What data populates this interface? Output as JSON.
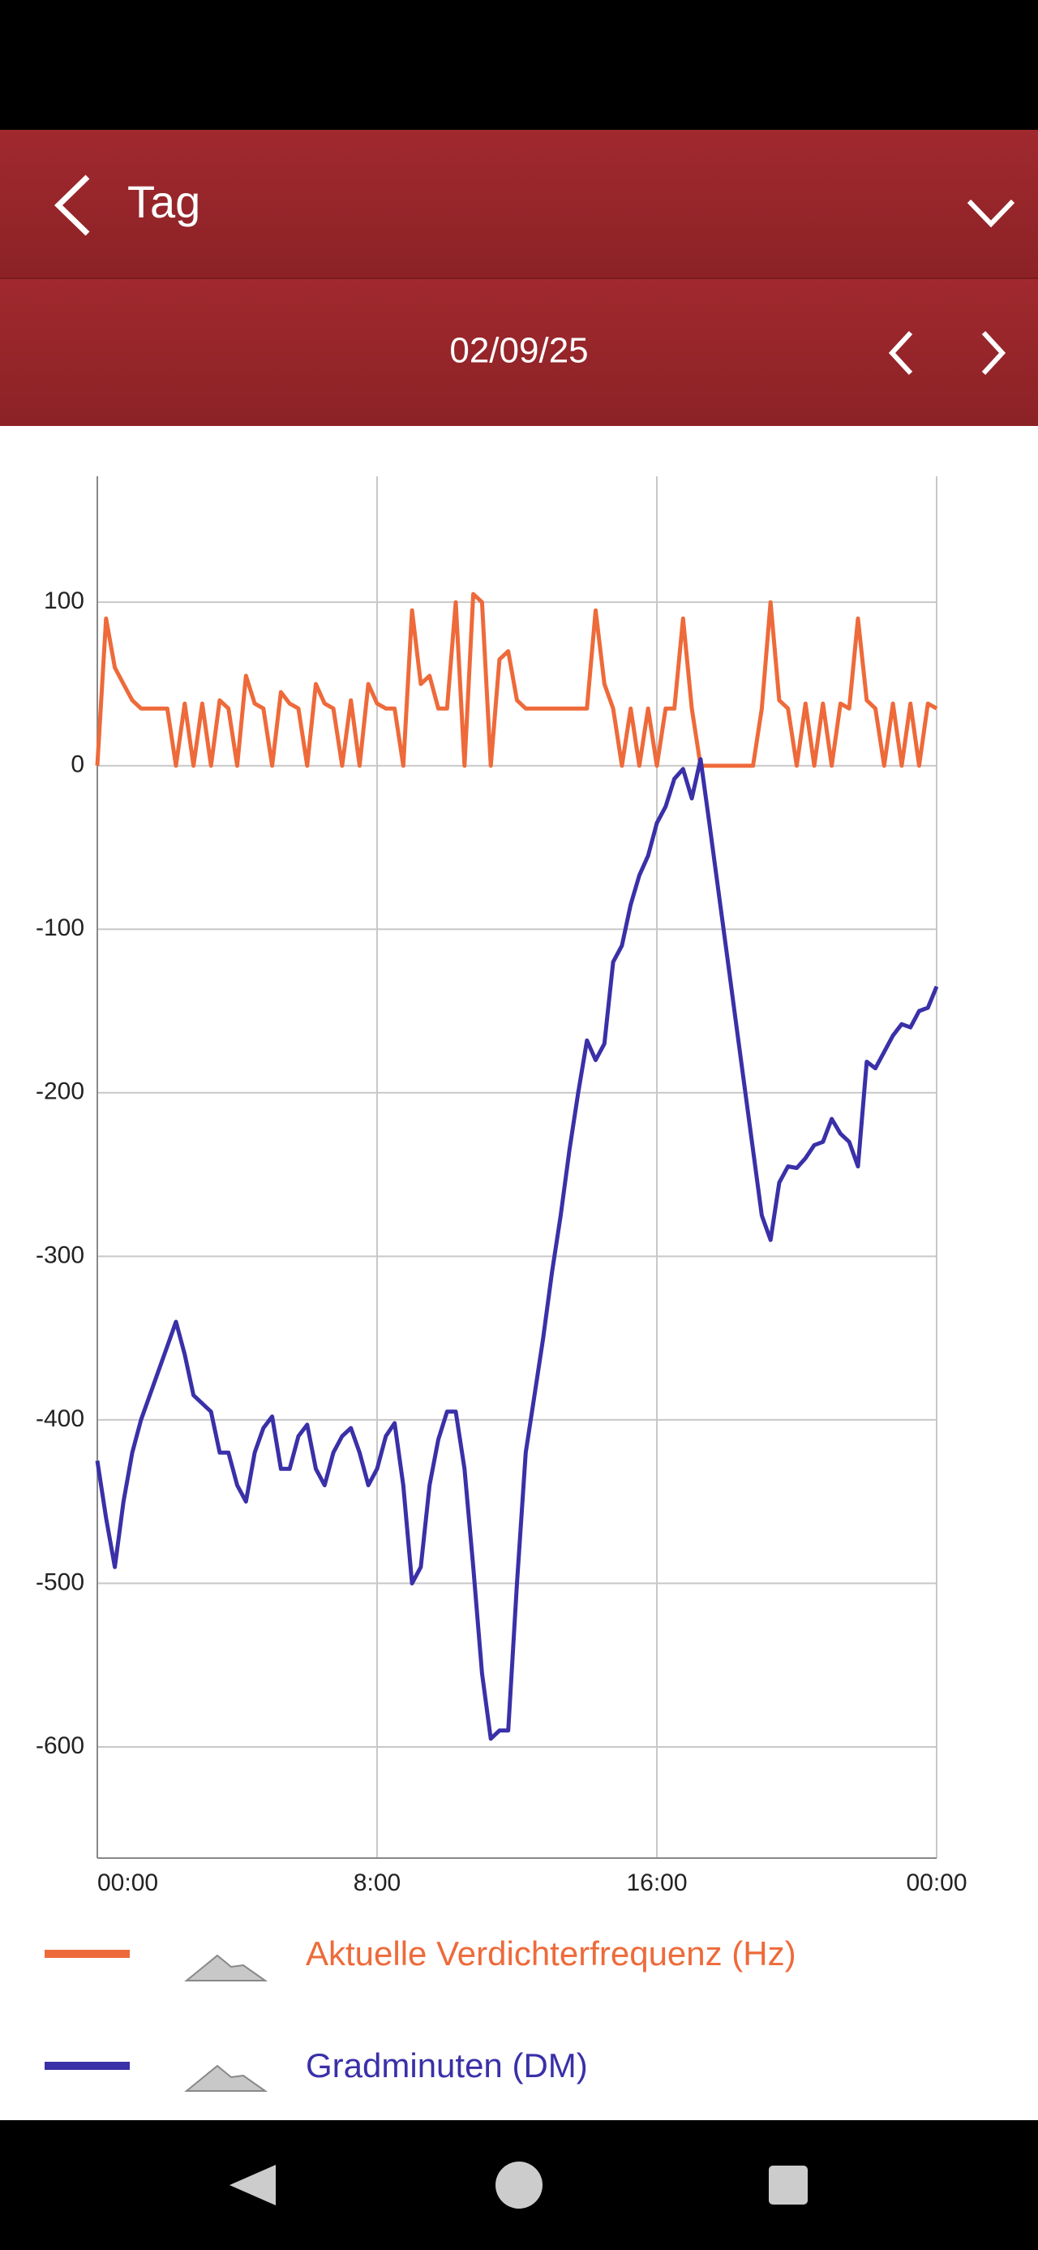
{
  "header": {
    "title": "Tag",
    "date": "02/09/25"
  },
  "chart_data": {
    "type": "line",
    "x": [
      0,
      0.25,
      0.5,
      0.75,
      1,
      1.25,
      1.5,
      1.75,
      2,
      2.25,
      2.5,
      2.75,
      3,
      3.25,
      3.5,
      3.75,
      4,
      4.25,
      4.5,
      4.75,
      5,
      5.25,
      5.5,
      5.75,
      6,
      6.25,
      6.5,
      6.75,
      7,
      7.25,
      7.5,
      7.75,
      8,
      8.25,
      8.5,
      8.75,
      9,
      9.25,
      9.5,
      9.75,
      10,
      10.25,
      10.5,
      10.75,
      11,
      11.25,
      11.5,
      11.75,
      12,
      12.25,
      12.5,
      12.75,
      13,
      13.25,
      13.5,
      13.75,
      14,
      14.25,
      14.5,
      14.75,
      15,
      15.25,
      15.5,
      15.75,
      16,
      16.25,
      16.5,
      16.75,
      17,
      17.25,
      17.5,
      17.75,
      18,
      18.25,
      18.5,
      18.75,
      19,
      19.25,
      19.5,
      19.75,
      20,
      20.25,
      20.5,
      20.75,
      21,
      21.25,
      21.5,
      21.75,
      22,
      22.25,
      22.5,
      22.75,
      23,
      23.25,
      23.5,
      23.75,
      24
    ],
    "xlim": [
      0,
      24
    ],
    "xticks": [
      {
        "value": 0,
        "label": "00:00"
      },
      {
        "value": 8,
        "label": "8:00"
      },
      {
        "value": 16,
        "label": "16:00"
      },
      {
        "value": 24,
        "label": "00:00"
      }
    ],
    "ylim": [
      -668,
      177
    ],
    "yticks": [
      -600,
      -500,
      -400,
      -300,
      -200,
      -100,
      0,
      100
    ],
    "grid": true,
    "series": [
      {
        "name": "Aktuelle Verdichterfrequenz (Hz)",
        "color": "#ee6a3a",
        "values": [
          0,
          90,
          60,
          50,
          40,
          35,
          35,
          35,
          35,
          0,
          38,
          0,
          38,
          0,
          40,
          35,
          0,
          55,
          38,
          35,
          0,
          45,
          38,
          35,
          0,
          50,
          38,
          35,
          0,
          40,
          0,
          50,
          38,
          35,
          35,
          0,
          95,
          50,
          55,
          35,
          35,
          100,
          0,
          105,
          100,
          0,
          65,
          70,
          40,
          35,
          35,
          35,
          35,
          35,
          35,
          35,
          35,
          95,
          50,
          35,
          0,
          35,
          0,
          35,
          0,
          35,
          35,
          90,
          35,
          0,
          0,
          0,
          0,
          0,
          0,
          0,
          35,
          100,
          40,
          35,
          0,
          38,
          0,
          38,
          0,
          38,
          35,
          90,
          40,
          35,
          0,
          38,
          0,
          38,
          0,
          38,
          35
        ]
      },
      {
        "name": "Gradminuten (DM)",
        "color": "#3a30a8",
        "values": [
          -425,
          -460,
          -490,
          -450,
          -420,
          -400,
          -385,
          -370,
          -355,
          -340,
          -360,
          -385,
          -390,
          -395,
          -420,
          -420,
          -440,
          -450,
          -420,
          -405,
          -398,
          -430,
          -430,
          -410,
          -403,
          -430,
          -440,
          -420,
          -410,
          -405,
          -420,
          -440,
          -430,
          -410,
          -402,
          -440,
          -500,
          -490,
          -440,
          -412,
          -395,
          -395,
          -430,
          -490,
          -555,
          -595,
          -590,
          -590,
          -500,
          -420,
          -385,
          -350,
          -310,
          -275,
          -235,
          -200,
          -168,
          -180,
          -170,
          -120,
          -110,
          -85,
          -67,
          -55,
          -35,
          -25,
          -8,
          -2,
          -20,
          4,
          -35,
          -75,
          -115,
          -155,
          -195,
          -235,
          -275,
          -290,
          -255,
          -245,
          -246,
          -240,
          -232,
          -230,
          -216,
          -225,
          -230,
          -245,
          -181,
          -185,
          -175,
          -165,
          -158,
          -160,
          -150,
          -148,
          -135
        ]
      }
    ]
  }
}
